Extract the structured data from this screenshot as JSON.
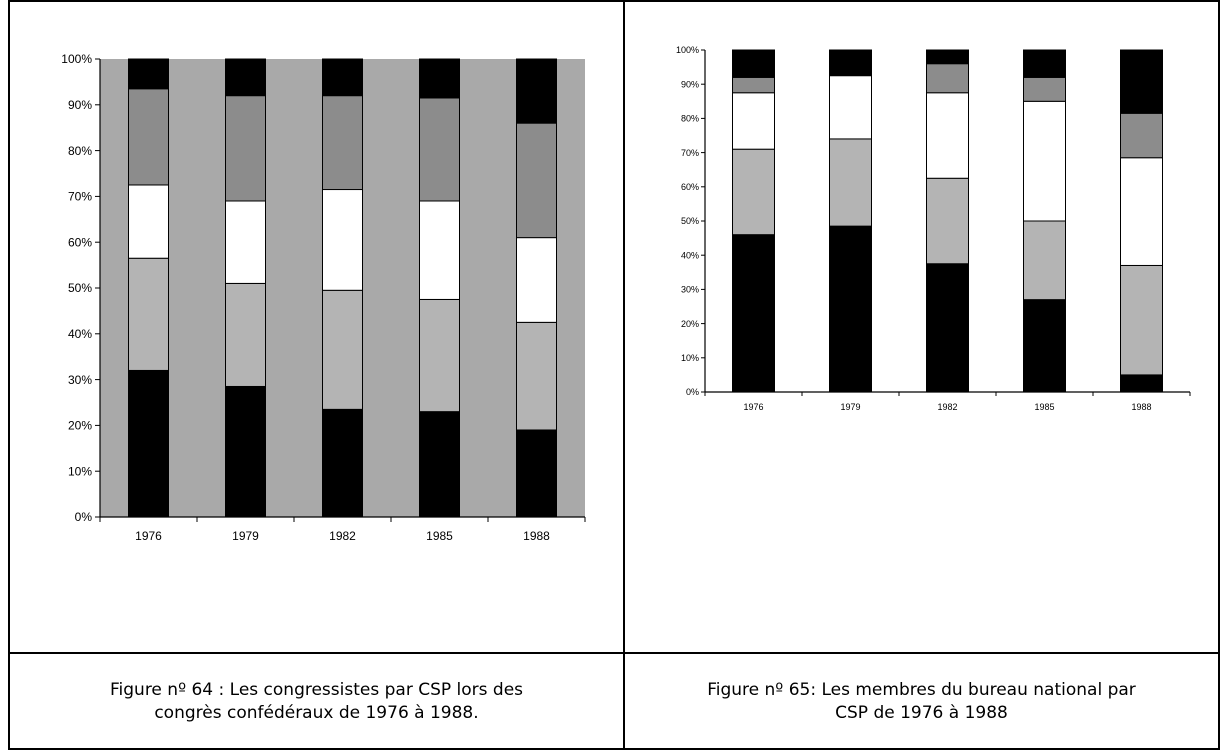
{
  "colors": {
    "black": "#000000",
    "dark_gray": "#8c8c8c",
    "light_gray": "#b4b4b4",
    "white": "#ffffff",
    "plot_bg_fig64": "#a9a9a9",
    "plot_bg_fig65": "#ffffff"
  },
  "chart_data": [
    {
      "type": "bar",
      "stacked": true,
      "title": "",
      "xlabel": "",
      "ylabel": "",
      "ylim": [
        0,
        100
      ],
      "y_ticks": [
        "0%",
        "10%",
        "20%",
        "30%",
        "40%",
        "50%",
        "60%",
        "70%",
        "80%",
        "90%",
        "100%"
      ],
      "categories": [
        "1976",
        "1979",
        "1982",
        "1985",
        "1988"
      ],
      "series": [
        {
          "color": "black",
          "values": [
            32,
            28.5,
            23.5,
            23,
            19
          ]
        },
        {
          "color": "light_gray",
          "values": [
            24.5,
            22.5,
            26,
            24.5,
            23.5
          ]
        },
        {
          "color": "white",
          "values": [
            16,
            18,
            22,
            21.5,
            18.5
          ]
        },
        {
          "color": "dark_gray",
          "values": [
            21,
            23,
            20.5,
            22.5,
            25
          ]
        },
        {
          "color": "black",
          "values": [
            6.5,
            8,
            8,
            8.5,
            14
          ]
        }
      ],
      "legend": false,
      "grid": false,
      "caption": "Figure nº 64 : Les congressistes par CSP lors des congrès confédéraux de 1976 à 1988."
    },
    {
      "type": "bar",
      "stacked": true,
      "title": "",
      "xlabel": "",
      "ylabel": "",
      "ylim": [
        0,
        100
      ],
      "y_ticks": [
        "0%",
        "10%",
        "20%",
        "30%",
        "40%",
        "50%",
        "60%",
        "70%",
        "80%",
        "90%",
        "100%"
      ],
      "categories": [
        "1976",
        "1979",
        "1982",
        "1985",
        "1988"
      ],
      "series": [
        {
          "color": "black",
          "values": [
            46,
            48.5,
            37.5,
            27,
            5
          ]
        },
        {
          "color": "light_gray",
          "values": [
            25,
            25.5,
            25,
            23,
            32
          ]
        },
        {
          "color": "white",
          "values": [
            16.5,
            18.5,
            25,
            35,
            31.5
          ]
        },
        {
          "color": "dark_gray",
          "values": [
            4.5,
            0,
            8.5,
            7,
            13
          ]
        },
        {
          "color": "black",
          "values": [
            8,
            7.5,
            4,
            8,
            18.5
          ]
        }
      ],
      "legend": false,
      "grid": false,
      "caption": "Figure nº 65: Les membres du bureau national par CSP de 1976 à 1988"
    }
  ],
  "captions": {
    "fig64_line1": "Figure nº 64 : Les congressistes par CSP lors des",
    "fig64_line2": "congrès confédéraux de 1976 à 1988.",
    "fig65_line1": "Figure nº 65: Les membres du bureau national par",
    "fig65_line2": "CSP de 1976 à 1988"
  }
}
